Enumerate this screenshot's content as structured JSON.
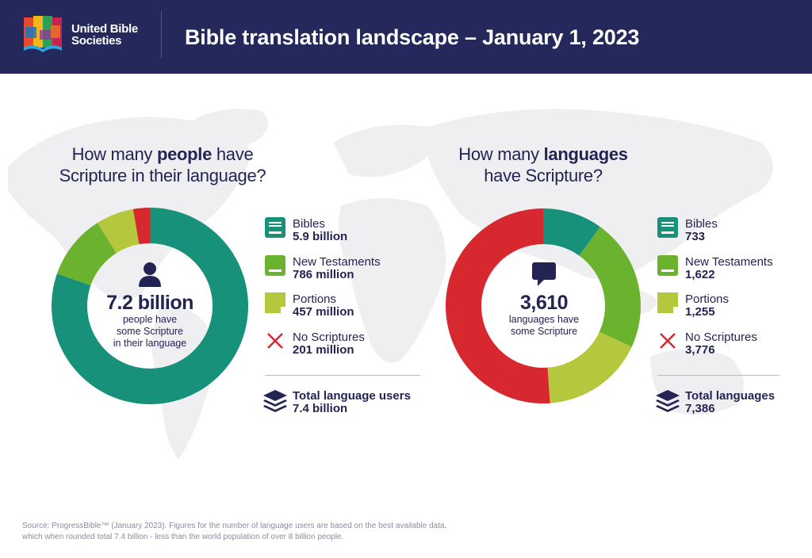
{
  "header": {
    "org_line1": "United Bible",
    "org_line2": "Societies",
    "title": "Bible translation landscape – January 1, 2023",
    "background": "#25285a"
  },
  "colors": {
    "bibles": "#17917a",
    "new_testaments": "#6bb22e",
    "portions": "#b4c73d",
    "no_scriptures": "#d7282f",
    "text": "#232454"
  },
  "people": {
    "question_pre": "How many ",
    "question_bold": "people",
    "question_post": " have",
    "question_line2": "Scripture in their language?",
    "center_value": "7.2 billion",
    "center_line1": "people have",
    "center_line2": "some Scripture",
    "center_line3": "in their language",
    "center_icon": "person-icon",
    "legend": [
      {
        "label": "Bibles",
        "value": "5.9 billion",
        "icon": "book-icon"
      },
      {
        "label": "New Testaments",
        "value": "786 million",
        "icon": "book-half-icon"
      },
      {
        "label": "Portions",
        "value": "457 million",
        "icon": "page-icon"
      },
      {
        "label": "No Scriptures",
        "value": "201 million",
        "icon": "cross-icon"
      }
    ],
    "total_label": "Total language users",
    "total_value": "7.4 billion",
    "total_icon": "layers-icon"
  },
  "languages": {
    "question_pre": "How many ",
    "question_bold": "languages",
    "question_line2": "have Scripture?",
    "center_value": "3,610",
    "center_line1": "languages have",
    "center_line2": "some Scripture",
    "center_icon": "speech-bubble-icon",
    "legend": [
      {
        "label": "Bibles",
        "value": "733",
        "icon": "book-icon"
      },
      {
        "label": "New Testaments",
        "value": "1,622",
        "icon": "book-half-icon"
      },
      {
        "label": "Portions",
        "value": "1,255",
        "icon": "page-icon"
      },
      {
        "label": "No Scriptures",
        "value": "3,776",
        "icon": "cross-icon"
      }
    ],
    "total_label": "Total languages",
    "total_value": "7,386",
    "total_icon": "layers-icon"
  },
  "source": "Source: ProgressBible™ (January 2023). Figures for the number of language users are based on the best available data, which when rounded total 7.4 billion - less than the world population of over 8 billion people.",
  "chart_data": [
    {
      "type": "pie",
      "categories": [
        "Bibles",
        "New Testaments",
        "Portions",
        "No Scriptures"
      ],
      "values": [
        5900,
        786,
        457,
        201
      ],
      "colors": [
        "#17917a",
        "#6bb22e",
        "#b4c73d",
        "#d7282f"
      ]
    },
    {
      "type": "pie",
      "categories": [
        "Bibles",
        "New Testaments",
        "Portions",
        "No Scriptures"
      ],
      "values": [
        733,
        1622,
        1255,
        3776
      ],
      "colors": [
        "#17917a",
        "#6bb22e",
        "#b4c73d",
        "#d7282f"
      ]
    }
  ]
}
